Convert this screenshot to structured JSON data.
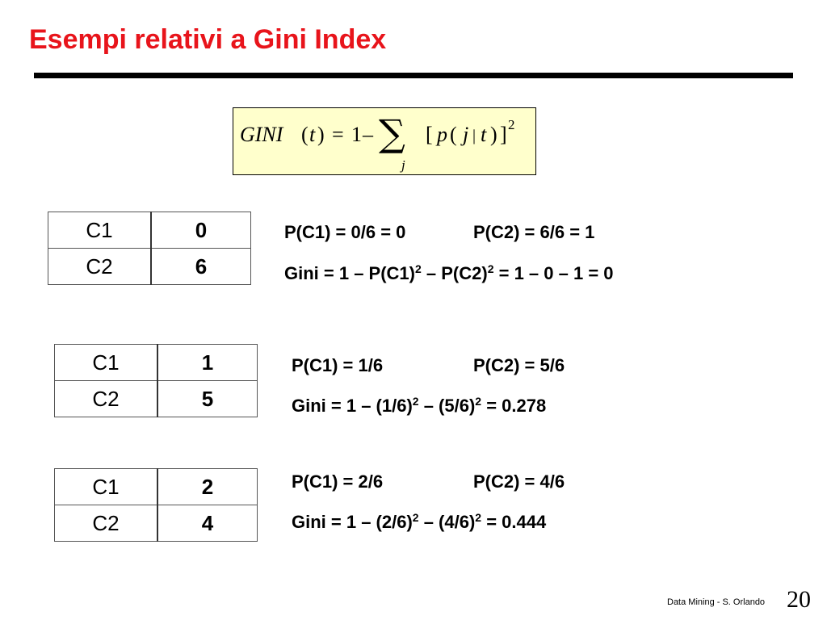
{
  "title": "Esempi relativi a Gini Index",
  "formula": {
    "lhs": "GINI",
    "arg": "t",
    "one": "1",
    "sum_index": "j",
    "term_p": "p",
    "term_j": "j",
    "term_t": "t",
    "exponent": "2"
  },
  "examples": [
    {
      "table": [
        {
          "label": "C1",
          "value": "0"
        },
        {
          "label": "C2",
          "value": "6"
        }
      ],
      "p_c1": "P(C1) = 0/6 = 0",
      "p_c2": "P(C2) = 6/6 = 1",
      "gini_a": "Gini = 1 – P(C1)",
      "gini_b": " – P(C2)",
      "gini_c": " = 1 – 0 – 1 = 0",
      "sq": "2"
    },
    {
      "table": [
        {
          "label": "C1",
          "value": "1"
        },
        {
          "label": "C2",
          "value": "5"
        }
      ],
      "p_c1": "P(C1) = 1/6",
      "p_c2": "P(C2) = 5/6",
      "gini_a": "Gini = 1 – (1/6)",
      "gini_b": " – (5/6)",
      "gini_c": " = 0.278",
      "sq": "2"
    },
    {
      "table": [
        {
          "label": "C1",
          "value": "2"
        },
        {
          "label": "C2",
          "value": "4"
        }
      ],
      "p_c1": "P(C1) = 2/6",
      "p_c2": "P(C2) = 4/6",
      "gini_a": "Gini = 1 – (2/6)",
      "gini_b": " – (4/6)",
      "gini_c": " = 0.444",
      "sq": "2"
    }
  ],
  "footer": {
    "text": "Data Mining - S. Orlando",
    "page": "20"
  },
  "colors": {
    "title": "#e8141b",
    "formula_bg": "#ffffcc"
  }
}
